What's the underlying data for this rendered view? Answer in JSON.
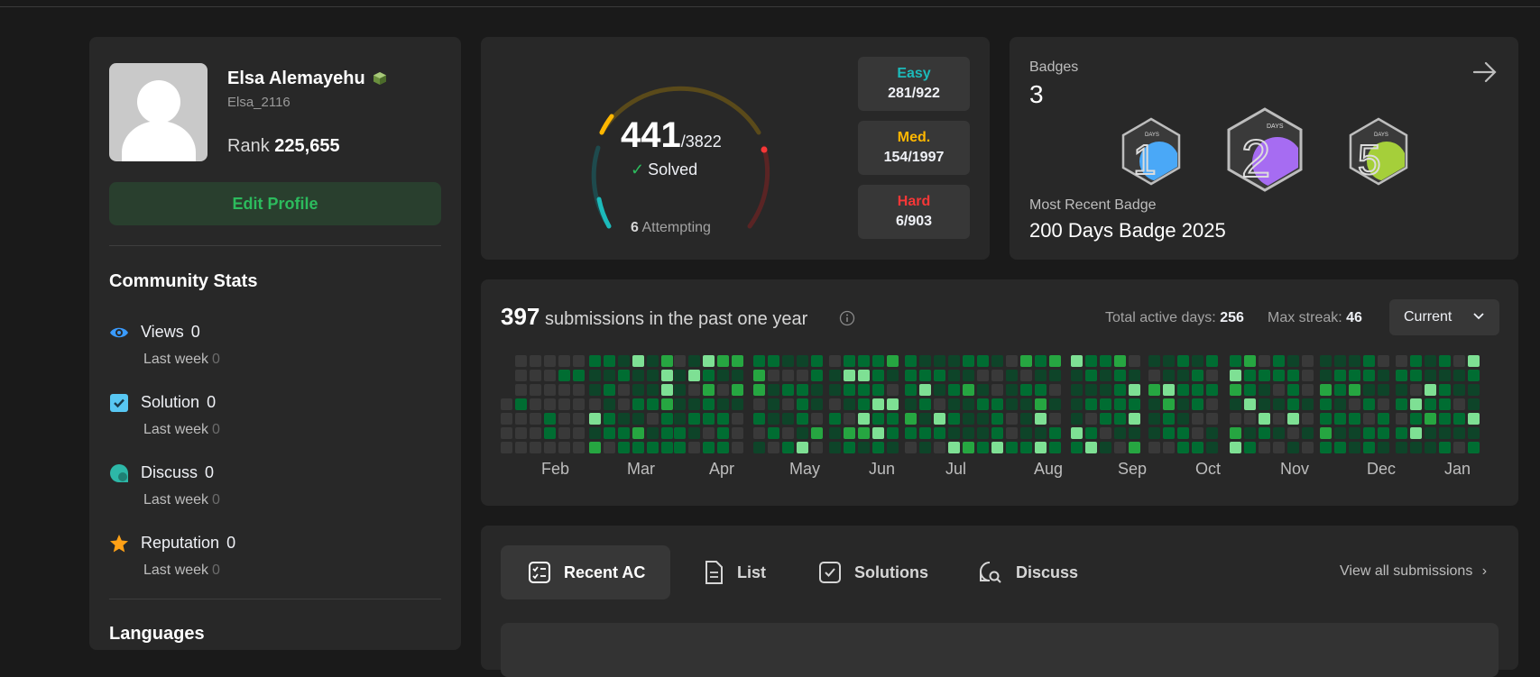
{
  "profile": {
    "name": "Elsa Alemayehu",
    "username": "Elsa_2116",
    "rank_label": "Rank",
    "rank_value": "225,655",
    "edit_label": "Edit Profile"
  },
  "community": {
    "title": "Community Stats",
    "stats": [
      {
        "label": "Views",
        "value": "0",
        "sub_label": "Last week",
        "sub_value": "0",
        "icon": "eye-icon",
        "color": "#3a9bff"
      },
      {
        "label": "Solution",
        "value": "0",
        "sub_label": "Last week",
        "sub_value": "0",
        "icon": "checkbox-icon",
        "color": "#58c7f2"
      },
      {
        "label": "Discuss",
        "value": "0",
        "sub_label": "Last week",
        "sub_value": "0",
        "icon": "discuss-icon",
        "color": "#2db8a8"
      },
      {
        "label": "Reputation",
        "value": "0",
        "sub_label": "Last week",
        "sub_value": "0",
        "icon": "star-icon",
        "color": "#ffa116"
      }
    ]
  },
  "languages_title": "Languages",
  "solved": {
    "count": "441",
    "total": "/3822",
    "solved_label": "Solved",
    "attempting_count": "6",
    "attempting_label": "Attempting",
    "difficulties": [
      {
        "label": "Easy",
        "value": "281/922",
        "color": "#1cbaba"
      },
      {
        "label": "Med.",
        "value": "154/1997",
        "color": "#ffb700"
      },
      {
        "label": "Hard",
        "value": "6/903",
        "color": "#f63737"
      }
    ]
  },
  "badges": {
    "title": "Badges",
    "count": "3",
    "recent_label": "Most Recent Badge",
    "recent_name": "200 Days Badge 2025",
    "items": [
      {
        "digit": "1",
        "text": "DAYS",
        "color": "#4aa8f7"
      },
      {
        "digit": "2",
        "text": "DAYS",
        "color": "#a66cf2"
      },
      {
        "digit": "5",
        "text": "DAYS",
        "color": "#a5cf3a"
      }
    ]
  },
  "heatmap": {
    "count": "397",
    "title_rest": "submissions in the past one year",
    "active_label": "Total active days:",
    "active_value": "256",
    "streak_label": "Max streak:",
    "streak_value": "46",
    "select_value": "Current",
    "months": [
      "Feb",
      "Mar",
      "Apr",
      "May",
      "Jun",
      "Jul",
      "Aug",
      "Sep",
      "Oct",
      "Nov",
      "Dec",
      "Jan"
    ]
  },
  "tabs": {
    "items": [
      {
        "label": "Recent AC",
        "icon": "checklist-icon"
      },
      {
        "label": "List",
        "icon": "document-icon"
      },
      {
        "label": "Solutions",
        "icon": "check-square-icon"
      },
      {
        "label": "Discuss",
        "icon": "chat-search-icon"
      }
    ],
    "view_all": "View all submissions"
  }
}
